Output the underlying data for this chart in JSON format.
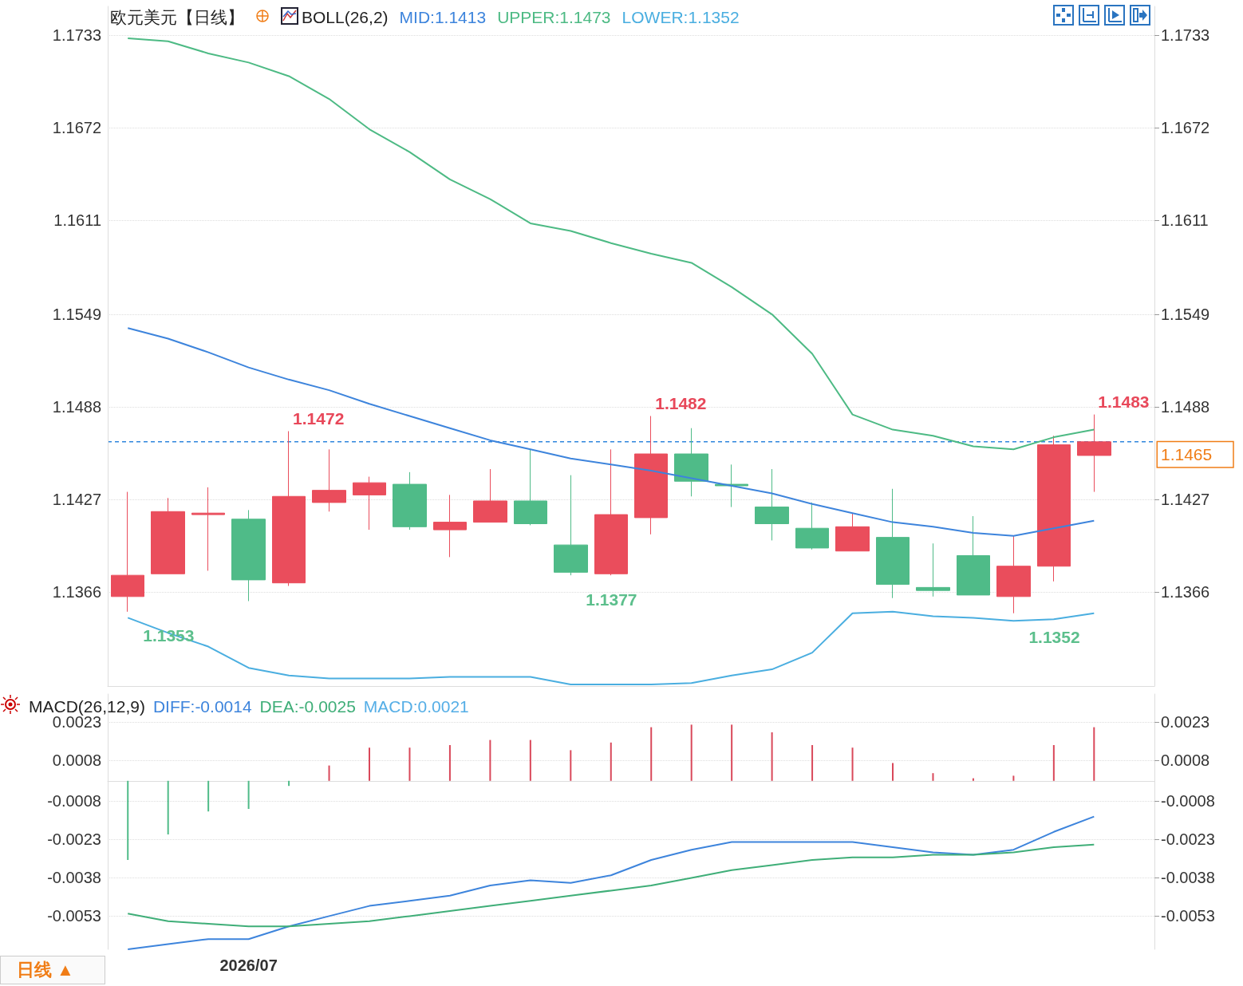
{
  "chart_data": [
    {
      "type": "candlestick",
      "title": "欧元美元【日线】",
      "subtitle": "BOLL(26,2)",
      "categories": [
        null,
        null,
        null,
        null,
        null,
        null,
        null,
        null,
        null,
        null,
        null,
        null,
        null,
        null,
        null,
        null,
        null,
        null,
        null,
        null,
        null,
        null,
        null,
        null,
        null
      ],
      "series": [
        {
          "type": "candlestick",
          "ohlc": [
            [
              1.1363,
              1.1432,
              1.1353,
              1.1377
            ],
            [
              1.1378,
              1.1428,
              1.1378,
              1.1419
            ],
            [
              1.1417,
              1.1435,
              1.138,
              1.1418
            ],
            [
              1.1414,
              1.142,
              1.136,
              1.1374
            ],
            [
              1.1372,
              1.1472,
              1.137,
              1.1429
            ],
            [
              1.1425,
              1.146,
              1.1419,
              1.1433
            ],
            [
              1.143,
              1.1442,
              1.1407,
              1.1438
            ],
            [
              1.1437,
              1.1445,
              1.1407,
              1.1409
            ],
            [
              1.1407,
              1.143,
              1.1389,
              1.1412
            ],
            [
              1.1412,
              1.1447,
              1.1412,
              1.1426
            ],
            [
              1.1426,
              1.146,
              1.141,
              1.1411
            ],
            [
              1.1397,
              1.1443,
              1.1377,
              1.1379
            ],
            [
              1.1378,
              1.146,
              1.1377,
              1.1417
            ],
            [
              1.1415,
              1.1482,
              1.1404,
              1.1457
            ],
            [
              1.1457,
              1.1474,
              1.1429,
              1.1439
            ],
            [
              1.1437,
              1.145,
              1.1422,
              1.1436
            ],
            [
              1.1422,
              1.1447,
              1.14,
              1.1411
            ],
            [
              1.1408,
              1.1425,
              1.1394,
              1.1395
            ],
            [
              1.1393,
              1.1418,
              1.1393,
              1.1409
            ],
            [
              1.1402,
              1.1434,
              1.1362,
              1.1371
            ],
            [
              1.1369,
              1.1398,
              1.1363,
              1.1367
            ],
            [
              1.139,
              1.1416,
              1.1364,
              1.1364
            ],
            [
              1.1363,
              1.1403,
              1.1352,
              1.1383
            ],
            [
              1.1383,
              1.1469,
              1.1373,
              1.1463
            ],
            [
              1.1456,
              1.1483,
              1.1432,
              1.1465
            ]
          ],
          "colors": [
            "#ea4d5c",
            "#ea4d5c",
            "#ea4d5c",
            "#4fbb88",
            "#ea4d5c",
            "#ea4d5c",
            "#ea4d5c",
            "#4fbb88",
            "#ea4d5c",
            "#ea4d5c",
            "#4fbb88",
            "#4fbb88",
            "#ea4d5c",
            "#ea4d5c",
            "#4fbb88",
            "#4fbb88",
            "#4fbb88",
            "#4fbb88",
            "#ea4d5c",
            "#4fbb88",
            "#4fbb88",
            "#4fbb88",
            "#ea4d5c",
            "#ea4d5c",
            "#ea4d5c"
          ]
        },
        {
          "type": "line",
          "name": "MID:1.1413",
          "color": "#3d84dc",
          "values": [
            1.154,
            1.1533,
            1.1524,
            1.1514,
            1.1506,
            1.1499,
            1.149,
            1.1482,
            1.1474,
            1.1466,
            1.146,
            1.1454,
            1.145,
            1.1446,
            1.1441,
            1.1436,
            1.1431,
            1.1424,
            1.1418,
            1.1412,
            1.1409,
            1.1405,
            1.1403,
            1.1408,
            1.1413
          ]
        },
        {
          "type": "line",
          "name": "UPPER:1.1473",
          "color": "#4dba84",
          "values": [
            1.1731,
            1.1729,
            1.1721,
            1.1715,
            1.1706,
            1.1691,
            1.1671,
            1.1656,
            1.1638,
            1.1625,
            1.1609,
            1.1604,
            1.1596,
            1.1589,
            1.1583,
            1.1567,
            1.1549,
            1.1523,
            1.1483,
            1.1473,
            1.1469,
            1.1462,
            1.146,
            1.1468,
            1.1473
          ]
        },
        {
          "type": "line",
          "name": "LOWER:1.1352",
          "color": "#4aaee0",
          "values": [
            1.1349,
            1.1339,
            1.133,
            1.1316,
            1.1311,
            1.1309,
            1.1309,
            1.1309,
            1.131,
            1.131,
            1.131,
            1.1305,
            1.1305,
            1.1305,
            1.1306,
            1.1311,
            1.1315,
            1.1326,
            1.1352,
            1.1353,
            1.135,
            1.1349,
            1.1347,
            1.1348,
            1.1352
          ]
        }
      ],
      "ylim": [
        1.1304,
        1.1752
      ],
      "yticks": [
        1.1366,
        1.1427,
        1.1488,
        1.1549,
        1.1611,
        1.1672,
        1.1733
      ],
      "y2lim": [
        1.1304,
        1.1752
      ],
      "y2ticks": [
        1.1366,
        1.1427,
        1.1488,
        1.1549,
        1.1611,
        1.1672,
        1.1733
      ],
      "ref_lines": [
        {
          "axis": "y2",
          "value": 1.1465,
          "label": "1.1465",
          "color": "#2f86dd",
          "line_style": "dashed"
        }
      ],
      "annotations": [
        "1.1472",
        "1.1482",
        "1.1483",
        "1.1353",
        "1.1377",
        "1.1352"
      ],
      "grid": "y",
      "legend": "top",
      "tick_labels": "y"
    },
    {
      "type": "bar",
      "title": "MACD(26,12,9)",
      "categories": [
        null,
        null,
        null,
        "2026/07",
        null,
        null,
        null,
        null,
        null,
        null,
        null,
        null,
        null,
        null,
        null,
        null,
        null,
        null,
        null,
        null,
        null,
        null,
        null,
        null,
        null
      ],
      "series": [
        {
          "type": "line",
          "name": "DIFF:-0.0014",
          "color": "#3d84dc",
          "values": [
            -0.0066,
            -0.0064,
            -0.0062,
            -0.0062,
            -0.0057,
            -0.0053,
            -0.0049,
            -0.0047,
            -0.0045,
            -0.0041,
            -0.0039,
            -0.004,
            -0.0037,
            -0.0031,
            -0.0027,
            -0.0024,
            -0.0024,
            -0.0024,
            -0.0024,
            -0.0026,
            -0.0028,
            -0.0029,
            -0.0027,
            -0.002,
            -0.0014
          ]
        },
        {
          "type": "line",
          "name": "DEA:-0.0025",
          "color": "#3fae78",
          "values": [
            -0.0052,
            -0.0055,
            -0.0056,
            -0.0057,
            -0.0057,
            -0.0056,
            -0.0055,
            -0.0053,
            -0.0051,
            -0.0049,
            -0.0047,
            -0.0045,
            -0.0043,
            -0.0041,
            -0.0038,
            -0.0035,
            -0.0033,
            -0.0031,
            -0.003,
            -0.003,
            -0.0029,
            -0.0029,
            -0.0028,
            -0.0026,
            -0.0025
          ]
        },
        {
          "type": "bar",
          "name": "MACD:0.0021",
          "values": [
            -0.0031,
            -0.0021,
            -0.0012,
            -0.0011,
            -0.0002,
            0.0006,
            0.0013,
            0.0013,
            0.0014,
            0.0016,
            0.0016,
            0.0012,
            0.0015,
            0.0021,
            0.0022,
            0.0022,
            0.0019,
            0.0014,
            0.0013,
            0.0007,
            0.0003,
            0.0001,
            0.0002,
            0.0014,
            0.0021
          ],
          "colors": [
            "#4fbb88",
            "#4fbb88",
            "#4fbb88",
            "#4fbb88",
            "#4fbb88",
            "#d9485a",
            "#d9485a",
            "#d9485a",
            "#d9485a",
            "#d9485a",
            "#d9485a",
            "#d9485a",
            "#d9485a",
            "#d9485a",
            "#d9485a",
            "#d9485a",
            "#d9485a",
            "#d9485a",
            "#d9485a",
            "#d9485a",
            "#d9485a",
            "#d9485a",
            "#d9485a",
            "#d9485a",
            "#d9485a"
          ]
        }
      ],
      "ylim": [
        -0.0066,
        0.0034
      ],
      "yticks": [
        -0.0053,
        -0.0038,
        -0.0023,
        -0.0008,
        0.0008,
        0.0023
      ],
      "y2lim": [
        -0.0066,
        0.0034
      ],
      "y2ticks": [
        -0.0053,
        -0.0038,
        -0.0023,
        -0.0008,
        0.0008,
        0.0023
      ],
      "annotations": [
        "日线 ▲"
      ],
      "grid": "y",
      "legend": "top left"
    }
  ]
}
